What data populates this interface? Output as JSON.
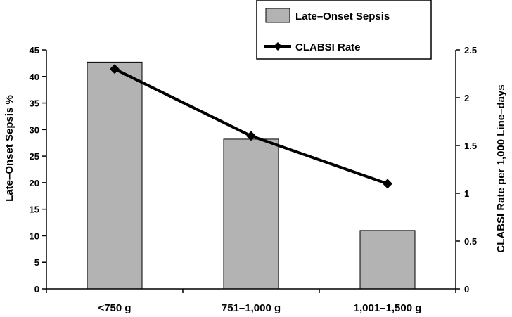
{
  "chart_data": {
    "type": "bar",
    "categories": [
      "<750 g",
      "751–1,000 g",
      "1,001–1,500 g"
    ],
    "series": [
      {
        "name": "Late–Onset Sepsis",
        "type": "bar",
        "axis": "left",
        "values": [
          42.7,
          28.2,
          11.0
        ],
        "color": "#b3b3b3"
      },
      {
        "name": "CLABSI Rate",
        "type": "line",
        "axis": "right",
        "values": [
          2.3,
          1.6,
          1.1
        ],
        "color": "#000000",
        "marker": "diamond"
      }
    ],
    "ylabel": "Late–Onset  Sepsis %",
    "ylim": [
      0,
      45
    ],
    "yticks": [
      "0",
      "5",
      "10",
      "15",
      "20",
      "25",
      "30",
      "35",
      "40",
      "45"
    ],
    "y2label": "CLABSI Rate per 1,000 Line–days",
    "y2lim": [
      0,
      2.5
    ],
    "y2ticks": [
      "0",
      "0.5",
      "1",
      "1.5",
      "2",
      "2.5"
    ],
    "grid": false,
    "legend_position": "top-right"
  }
}
